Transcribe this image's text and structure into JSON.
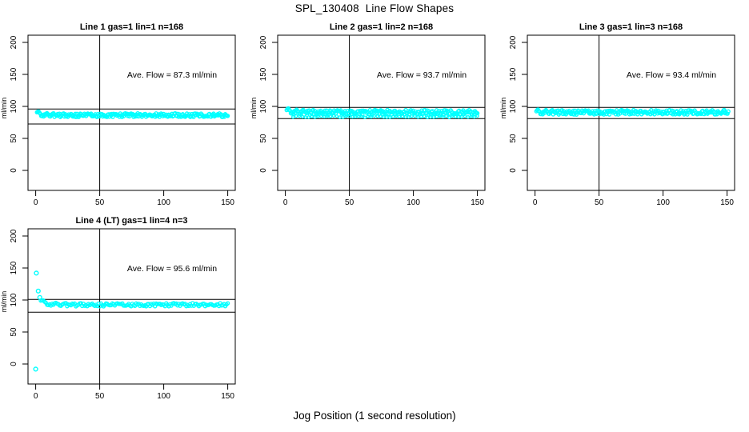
{
  "page": {
    "title": "SPL_130408  Line Flow Shapes",
    "xlabel": "Jog Position (1 second resolution)",
    "background_color": "#ffffff"
  },
  "colors": {
    "points": "#00ffff",
    "axis": "#000000",
    "text": "#000000"
  },
  "chart_data": [
    {
      "type": "scatter",
      "title": "Line 1 gas=1 lin=1 n=168",
      "annotation": "Ave. Flow =  87.3  ml/min",
      "ave_flow_ml_min": 87.3,
      "ylabel": "ml/min",
      "x_ticks": [
        0,
        50,
        100,
        150
      ],
      "y_ticks": [
        0,
        50,
        100,
        150,
        200
      ],
      "xlim": [
        -6,
        156
      ],
      "ylim": [
        -30,
        211
      ],
      "grid": false,
      "vline_x": 50,
      "hlines": [
        96,
        72.5
      ],
      "marker": "circle-open",
      "bands": [
        {
          "x_start": 1,
          "x_end": 150,
          "start_value": 93,
          "settle_value": 86.3,
          "decay": 2.5,
          "jitter": 3.0,
          "n_points": 230,
          "r": 2
        }
      ],
      "outliers": []
    },
    {
      "type": "scatter",
      "title": "Line 2 gas=1 lin=2 n=168",
      "annotation": "Ave. Flow =  93.7  ml/min",
      "ave_flow_ml_min": 93.7,
      "ylabel": "ml/min",
      "x_ticks": [
        0,
        50,
        100,
        150
      ],
      "y_ticks": [
        0,
        50,
        100,
        150,
        200
      ],
      "xlim": [
        -6,
        156
      ],
      "ylim": [
        -30,
        211
      ],
      "grid": false,
      "vline_x": 50,
      "hlines": [
        98.5,
        81
      ],
      "marker": "circle-open",
      "bands": [
        {
          "x_start": 1,
          "x_end": 150,
          "start_value": 97,
          "settle_value": 90.8,
          "decay": 3,
          "jitter": 3.8,
          "n_points": 230,
          "r": 2
        },
        {
          "x_start": 6,
          "x_end": 150,
          "start_value": 84,
          "settle_value": 84,
          "decay": 1,
          "jitter": 1.2,
          "n_points": 60,
          "r": 1.6
        }
      ],
      "outliers": []
    },
    {
      "type": "scatter",
      "title": "Line 3 gas=1 lin=3 n=168",
      "annotation": "Ave. Flow =  93.4  ml/min",
      "ave_flow_ml_min": 93.4,
      "ylabel": "ml/min",
      "x_ticks": [
        0,
        50,
        100,
        150
      ],
      "y_ticks": [
        0,
        50,
        100,
        150,
        200
      ],
      "xlim": [
        -6,
        156
      ],
      "ylim": [
        -30,
        211
      ],
      "grid": false,
      "vline_x": 50,
      "hlines": [
        98.5,
        81
      ],
      "marker": "circle-open",
      "bands": [
        {
          "x_start": 1,
          "x_end": 151,
          "start_value": 95,
          "settle_value": 90.8,
          "decay": 2,
          "jitter": 3.6,
          "n_points": 240,
          "r": 2
        }
      ],
      "outliers": []
    },
    {
      "type": "scatter",
      "title": "Line 4 (LT) gas=1 lin=4 n=3",
      "annotation": "Ave. Flow =  95.6  ml/min",
      "ave_flow_ml_min": 95.6,
      "ylabel": "ml/min",
      "x_ticks": [
        0,
        50,
        100,
        150
      ],
      "y_ticks": [
        0,
        50,
        100,
        150,
        200
      ],
      "xlim": [
        -6,
        156
      ],
      "ylim": [
        -30,
        211
      ],
      "grid": false,
      "vline_x": 50,
      "hlines": [
        101,
        81
      ],
      "marker": "circle-open",
      "bands": [
        {
          "x_start": 4,
          "x_end": 150,
          "start_value": 101,
          "settle_value": 92.6,
          "decay": 4,
          "jitter": 2.6,
          "n_points": 150,
          "r": 2
        }
      ],
      "outliers": [
        [
          0.5,
          142
        ],
        [
          2,
          114
        ],
        [
          3.2,
          104
        ],
        [
          0,
          -8
        ]
      ]
    }
  ]
}
